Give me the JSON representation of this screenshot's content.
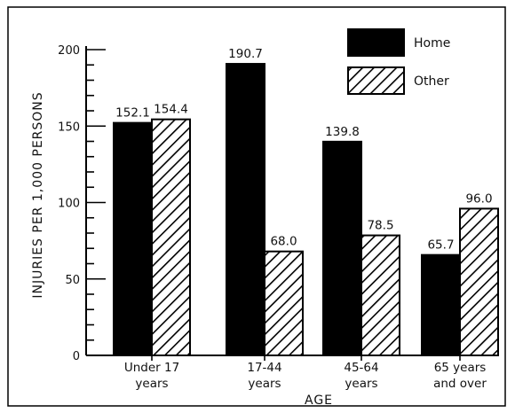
{
  "chart_data": {
    "type": "bar",
    "categories": [
      [
        "Under 17",
        "years"
      ],
      [
        "17-44",
        "years"
      ],
      [
        "45-64",
        "years"
      ],
      [
        "65 years",
        "and over"
      ]
    ],
    "series": [
      {
        "name": "Home",
        "values": [
          152.1,
          190.7,
          139.8,
          65.7
        ],
        "labels": [
          "152.1",
          "190.7",
          "139.8",
          "65.7"
        ],
        "fill": "#000000"
      },
      {
        "name": "Other",
        "values": [
          154.4,
          68.0,
          78.5,
          96.0
        ],
        "labels": [
          "154.4",
          "68.0",
          "78.5",
          "96.0"
        ],
        "fill": "hatch"
      }
    ],
    "xlabel": "AGE",
    "ylabel": "INJURIES PER 1,000 PERSONS",
    "ylim": [
      0,
      200
    ],
    "yticks": [
      0,
      50,
      100,
      150,
      200
    ],
    "legend_position": "top-right",
    "grid": false
  }
}
